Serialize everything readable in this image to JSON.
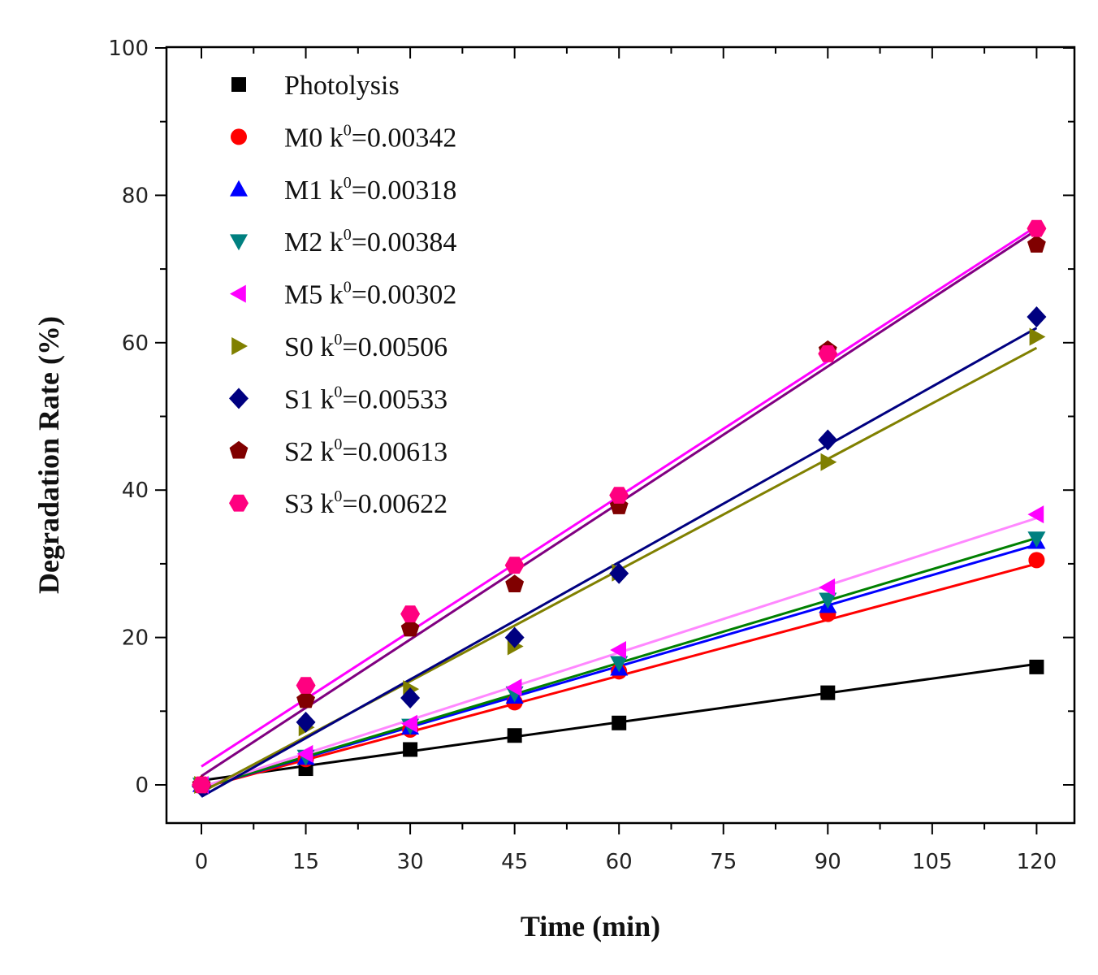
{
  "chart_data": {
    "type": "scatter",
    "title": "",
    "xlabel": "Time (min)",
    "ylabel": "Degradation Rate (%)",
    "xlim": [
      -7,
      126
    ],
    "ylim": [
      -5,
      100
    ],
    "xticks": [
      0,
      15,
      30,
      45,
      60,
      75,
      90,
      105,
      120
    ],
    "yticks": [
      0,
      20,
      40,
      60,
      80,
      100
    ],
    "legend_position": "top-left",
    "x": [
      0,
      15,
      30,
      45,
      60,
      90,
      120
    ],
    "series": [
      {
        "name": "Photolysis",
        "label": "Photolysis",
        "k_prefix": "",
        "k_value": "",
        "marker": "square",
        "color": "#000000",
        "line_color": "#000000",
        "values": [
          0,
          2.2,
          4.8,
          6.7,
          8.4,
          12.5,
          16.0
        ],
        "fit": [
          0.6,
          16.4
        ]
      },
      {
        "name": "M0",
        "label": "M0",
        "k_prefix": "k",
        "k_value": "=0.00342",
        "marker": "circle",
        "color": "#ff0000",
        "line_color": "#ff0000",
        "values": [
          0,
          3.5,
          7.5,
          11.2,
          15.4,
          23.2,
          30.5
        ],
        "fit": [
          -0.4,
          30.0
        ]
      },
      {
        "name": "M1",
        "label": "M1",
        "k_prefix": "k",
        "k_value": "=0.00318",
        "marker": "triangle-up",
        "color": "#0000ff",
        "line_color": "#0000ff",
        "values": [
          0,
          3.7,
          7.8,
          12.0,
          15.8,
          24.3,
          33.0
        ],
        "fit": [
          -0.4,
          32.6
        ]
      },
      {
        "name": "M2",
        "label": "M2",
        "k_prefix": "k",
        "k_value": "=0.00384",
        "marker": "triangle-down",
        "color": "#008080",
        "line_color": "#008000",
        "values": [
          0,
          3.8,
          8.0,
          12.4,
          16.5,
          25.1,
          33.4
        ],
        "fit": [
          -0.4,
          33.5
        ]
      },
      {
        "name": "M5",
        "label": "M5",
        "k_prefix": "k",
        "k_value": "=0.00302",
        "marker": "triangle-left",
        "color": "#ff00ff",
        "line_color": "#ff88ff",
        "values": [
          0,
          4.2,
          8.3,
          13.2,
          18.3,
          26.8,
          36.7
        ],
        "fit": [
          -0.3,
          36.2
        ]
      },
      {
        "name": "S0",
        "label": "S0",
        "k_prefix": "k",
        "k_value": "=0.00506",
        "marker": "triangle-right",
        "color": "#808000",
        "line_color": "#808000",
        "values": [
          0,
          7.8,
          13.0,
          18.8,
          28.8,
          43.8,
          60.8
        ],
        "fit": [
          -1.0,
          59.3
        ]
      },
      {
        "name": "S1",
        "label": "S1",
        "k_prefix": "k",
        "k_value": "=0.00533",
        "marker": "diamond",
        "color": "#000080",
        "line_color": "#000080",
        "values": [
          -0.2,
          8.5,
          11.8,
          20.0,
          28.7,
          46.8,
          63.5
        ],
        "fit": [
          -1.6,
          62.0
        ]
      },
      {
        "name": "S2",
        "label": "S2",
        "k_prefix": "k",
        "k_value": "=0.00613",
        "marker": "pentagon",
        "color": "#800000",
        "line_color": "#800080",
        "values": [
          0,
          11.5,
          21.2,
          27.2,
          37.8,
          59.0,
          73.3
        ],
        "fit": [
          1.2,
          75.3
        ]
      },
      {
        "name": "S3",
        "label": "S3",
        "k_prefix": "k",
        "k_value": "=0.00622",
        "marker": "hexagon",
        "color": "#ff0080",
        "line_color": "#ff00ff",
        "values": [
          0,
          13.5,
          23.2,
          29.8,
          39.3,
          58.5,
          75.5
        ],
        "fit": [
          2.5,
          75.8
        ]
      }
    ],
    "legend_sup": "0"
  }
}
